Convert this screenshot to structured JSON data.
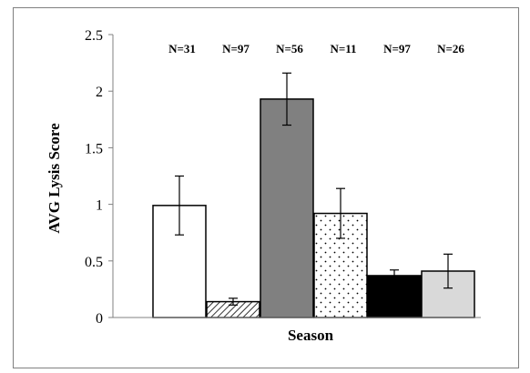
{
  "chart_data": {
    "type": "bar",
    "title": "",
    "xlabel": "Season",
    "ylabel": "AVG Lysis Score",
    "ylim": [
      0,
      2.5
    ],
    "yticks": [
      "0",
      "0.5",
      "1",
      "1.5",
      "2",
      "2.5"
    ],
    "grid": false,
    "legend": "none",
    "bars": [
      {
        "value": 0.99,
        "error": 0.26,
        "n_label": "N=31",
        "fill": "white",
        "color": "#ffffff"
      },
      {
        "value": 0.14,
        "error": 0.03,
        "n_label": "N=97",
        "fill": "diagonal",
        "color": "#ffffff"
      },
      {
        "value": 1.93,
        "error": 0.23,
        "n_label": "N=56",
        "fill": "solid",
        "color": "#808080"
      },
      {
        "value": 0.92,
        "error": 0.22,
        "n_label": "N=11",
        "fill": "dots",
        "color": "#ffffff"
      },
      {
        "value": 0.37,
        "error": 0.05,
        "n_label": "N=97",
        "fill": "solid",
        "color": "#000000"
      },
      {
        "value": 0.41,
        "error": 0.15,
        "n_label": "N=26",
        "fill": "solid",
        "color": "#d9d9d9"
      }
    ]
  }
}
